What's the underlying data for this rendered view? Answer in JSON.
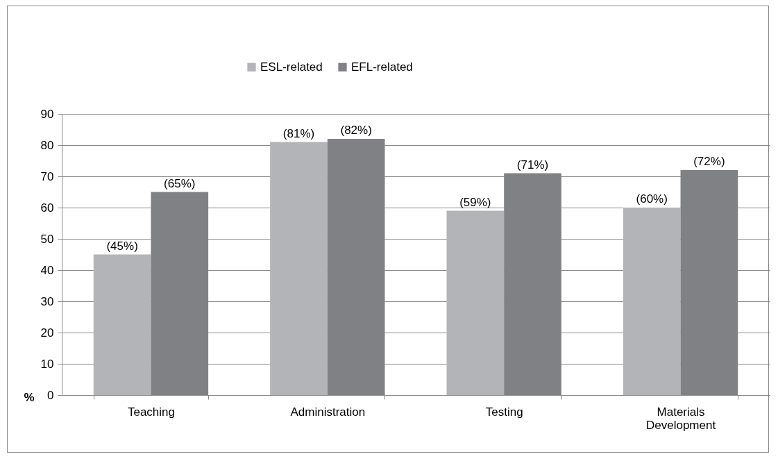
{
  "chart_data": {
    "type": "bar",
    "ylabel": "%",
    "categories": [
      "Teaching",
      "Administration",
      "Testing",
      "Materials Development"
    ],
    "series": [
      {
        "name": "ESL-related",
        "color": "#b3b4b8",
        "values": [
          45,
          81,
          59,
          60
        ],
        "value_labels": [
          "(45%)",
          "(81%)",
          "(59%)",
          "(60%)"
        ]
      },
      {
        "name": "EFL-related",
        "color": "#808184",
        "values": [
          65,
          82,
          71,
          72
        ],
        "value_labels": [
          "(65%)",
          "(82%)",
          "(71%)",
          "(72%)"
        ]
      }
    ],
    "ylim": [
      0,
      90
    ],
    "yticks": [
      0,
      10,
      20,
      30,
      40,
      50,
      60,
      70,
      80,
      90
    ],
    "grid": "y",
    "legend": "top"
  }
}
